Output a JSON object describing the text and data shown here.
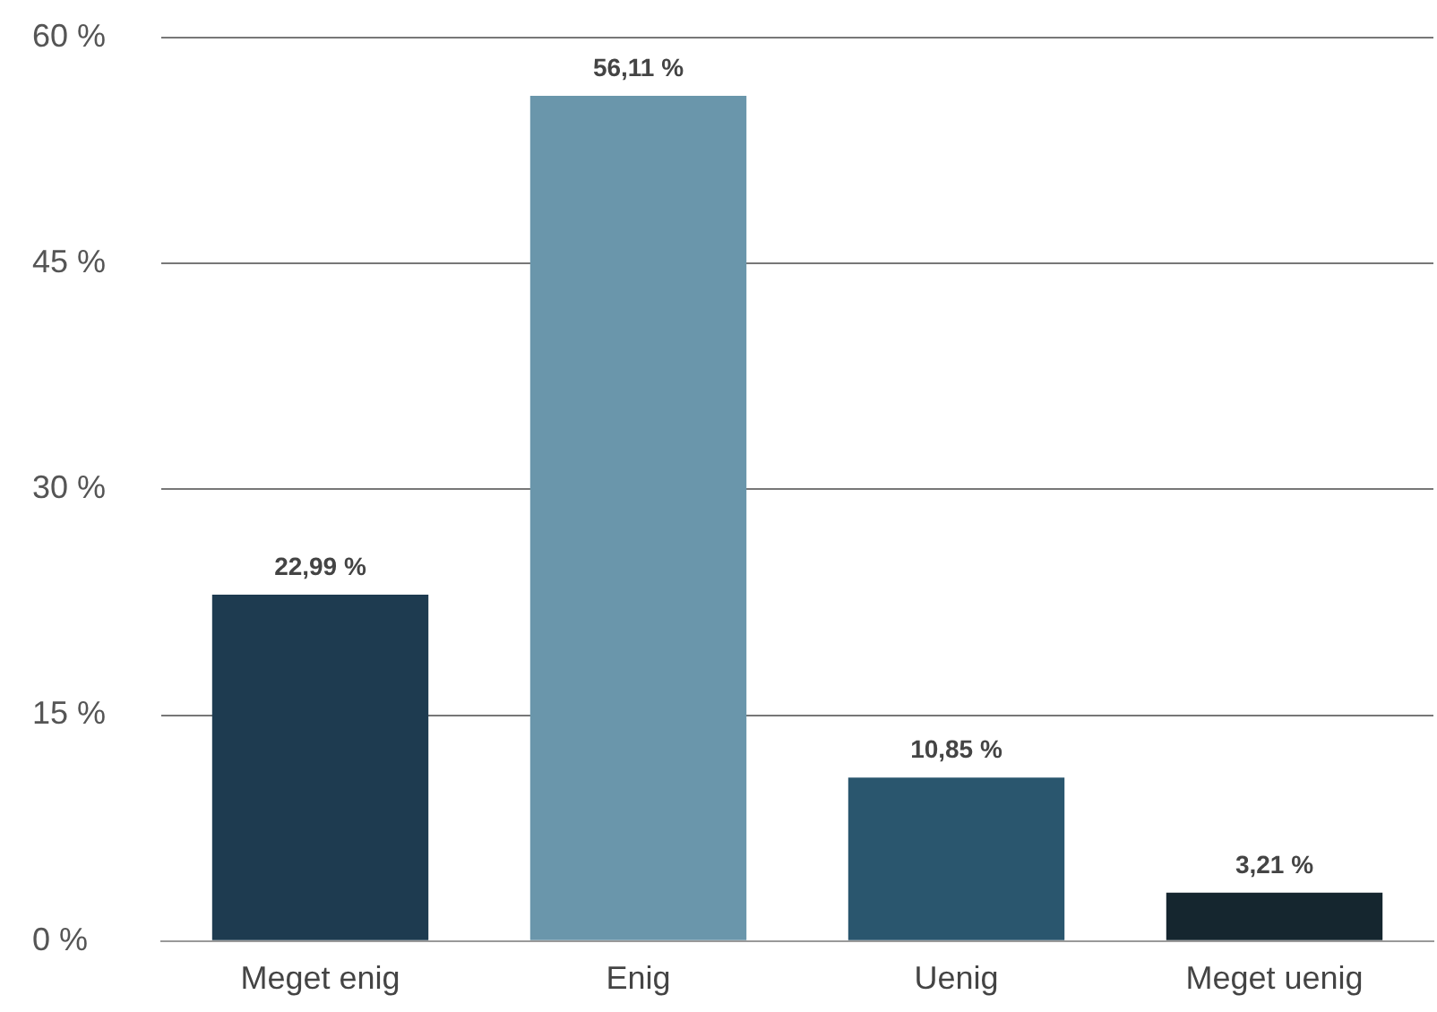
{
  "chart_data": {
    "type": "bar",
    "categories": [
      "Meget enig",
      "Enig",
      "Uenig",
      "Meget uenig"
    ],
    "values": [
      22.99,
      56.11,
      10.85,
      3.21
    ],
    "value_labels": [
      "22,99 %",
      "56,11 %",
      "10,85 %",
      "3,21 %"
    ],
    "colors": [
      "#1e3b50",
      "#6a96ab",
      "#2a566e",
      "#15262f"
    ],
    "ylim": [
      0,
      60
    ],
    "yticks": [
      {
        "value": 0,
        "label": "0 %"
      },
      {
        "value": 15,
        "label": "15 %"
      },
      {
        "value": 30,
        "label": "30 %"
      },
      {
        "value": 45,
        "label": "45 %"
      },
      {
        "value": 60,
        "label": "60 %"
      }
    ],
    "grid": "y",
    "legend": false
  }
}
